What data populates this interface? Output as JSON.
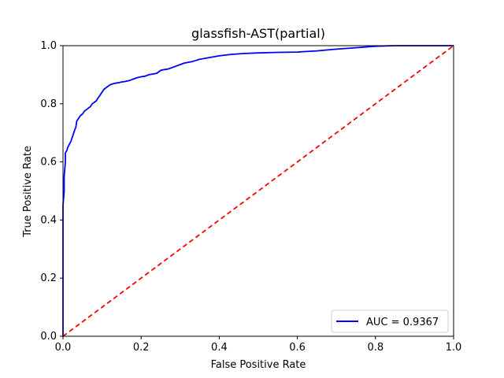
{
  "chart_data": {
    "type": "line",
    "title": "glassfish-AST(partial)",
    "xlabel": "False Positive Rate",
    "ylabel": "True Positive Rate",
    "xlim": [
      0,
      1
    ],
    "ylim": [
      0,
      1
    ],
    "xticks": [
      "0.0",
      "0.2",
      "0.4",
      "0.6",
      "0.8",
      "1.0"
    ],
    "yticks": [
      "0.0",
      "0.2",
      "0.4",
      "0.6",
      "0.8",
      "1.0"
    ],
    "grid": false,
    "legend_position": "lower-right",
    "series": [
      {
        "name": "AUC = 0.9367",
        "color": "#0000ff",
        "style": "solid",
        "x": [
          0,
          0,
          0.003,
          0.003,
          0.006,
          0.006,
          0.01,
          0.012,
          0.016,
          0.02,
          0.025,
          0.03,
          0.033,
          0.035,
          0.04,
          0.045,
          0.05,
          0.055,
          0.06,
          0.065,
          0.07,
          0.075,
          0.08,
          0.085,
          0.09,
          0.095,
          0.1,
          0.105,
          0.11,
          0.12,
          0.13,
          0.14,
          0.15,
          0.16,
          0.17,
          0.18,
          0.19,
          0.2,
          0.21,
          0.22,
          0.24,
          0.25,
          0.26,
          0.27,
          0.28,
          0.3,
          0.31,
          0.33,
          0.35,
          0.37,
          0.4,
          0.43,
          0.46,
          0.5,
          0.55,
          0.6,
          0.65,
          0.7,
          0.75,
          0.8,
          0.85,
          0.9,
          0.95,
          1.0
        ],
        "y": [
          0,
          0.45,
          0.5,
          0.55,
          0.6,
          0.63,
          0.64,
          0.65,
          0.66,
          0.67,
          0.69,
          0.71,
          0.72,
          0.74,
          0.75,
          0.76,
          0.765,
          0.775,
          0.78,
          0.785,
          0.79,
          0.8,
          0.805,
          0.81,
          0.82,
          0.83,
          0.84,
          0.85,
          0.855,
          0.865,
          0.87,
          0.872,
          0.875,
          0.877,
          0.88,
          0.885,
          0.89,
          0.893,
          0.895,
          0.9,
          0.905,
          0.915,
          0.918,
          0.92,
          0.925,
          0.935,
          0.94,
          0.945,
          0.953,
          0.958,
          0.965,
          0.97,
          0.973,
          0.975,
          0.977,
          0.978,
          0.982,
          0.988,
          0.993,
          0.998,
          1.0,
          1.0,
          1.0,
          1.0
        ]
      },
      {
        "name": "",
        "color": "#ff0000",
        "style": "dashed",
        "x": [
          0,
          1
        ],
        "y": [
          0,
          1
        ]
      }
    ]
  }
}
